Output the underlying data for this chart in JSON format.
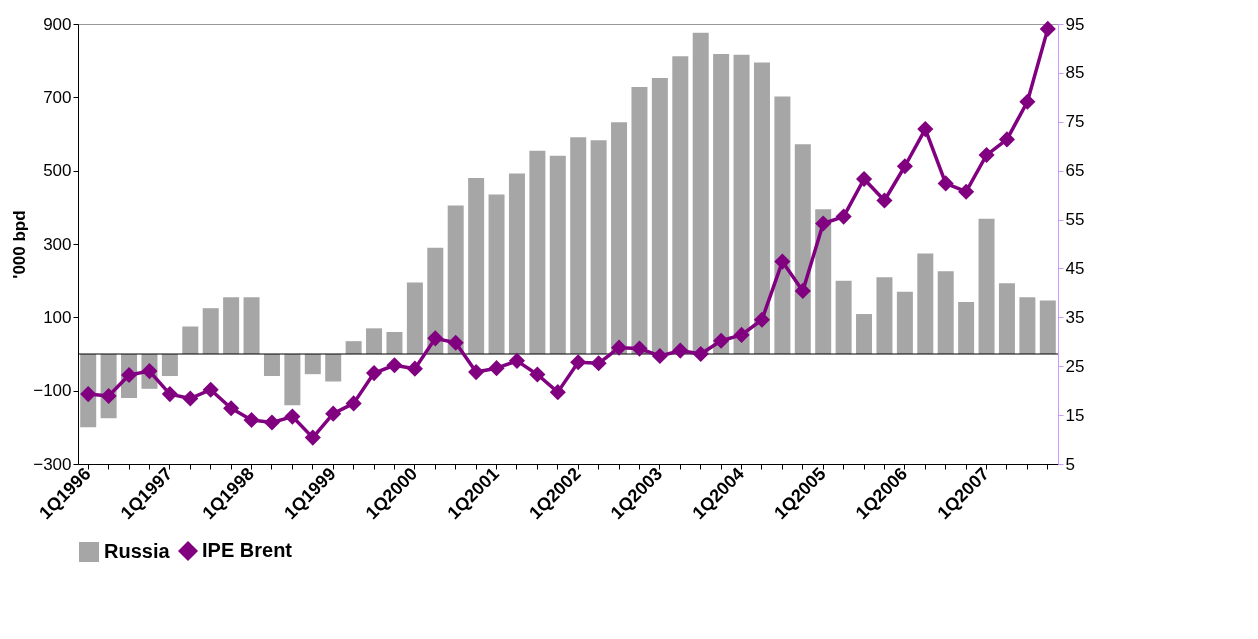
{
  "chart_data": {
    "type": "bar",
    "ylabel": "'000 bpd",
    "categories": [
      "1Q1996",
      null,
      null,
      null,
      "1Q1997",
      null,
      null,
      null,
      "1Q1998",
      null,
      null,
      null,
      "1Q1999",
      null,
      null,
      null,
      "1Q2000",
      null,
      null,
      null,
      "1Q2001",
      null,
      null,
      null,
      "1Q2002",
      null,
      null,
      null,
      "1Q2003",
      null,
      null,
      null,
      "1Q2004",
      null,
      null,
      null,
      "1Q2005",
      null,
      null,
      null,
      "1Q2006",
      null,
      null,
      null,
      "1Q2007",
      null,
      null,
      null
    ],
    "series": [
      {
        "name": "Russia",
        "color": "#a6a6a6",
        "values": [
          -200,
          -175,
          -120,
          -95,
          -60,
          75,
          125,
          155,
          155,
          -60,
          -140,
          -55,
          -75,
          35,
          70,
          60,
          195,
          290,
          405,
          480,
          435,
          492,
          554,
          541,
          591,
          583,
          632,
          728,
          753,
          812,
          876,
          818,
          816,
          795,
          702,
          572,
          395,
          200,
          109,
          209,
          170,
          274,
          226,
          142,
          369,
          193,
          155,
          146
        ]
      },
      {
        "name": "IPE Brent",
        "type": "line",
        "axis": "y2",
        "color": "#800080",
        "marker": "diamond",
        "values": [
          19.3,
          18.9,
          23.2,
          24.0,
          19.3,
          18.4,
          20.2,
          16.4,
          14.0,
          13.5,
          14.7,
          10.4,
          15.3,
          17.4,
          23.6,
          25.2,
          24.5,
          30.7,
          29.8,
          23.8,
          24.6,
          26.1,
          23.3,
          19.7,
          25.8,
          25.6,
          28.8,
          28.6,
          27.1,
          28.2,
          27.5,
          30.2,
          31.4,
          34.5,
          46.4,
          40.4,
          54.2,
          55.6,
          63.3,
          58.9,
          65.9,
          73.5,
          62.4,
          60.7,
          68.2,
          71.4,
          79.1,
          94.0
        ]
      }
    ],
    "ylim": [
      -300,
      900
    ],
    "yticks": [
      -300,
      -100,
      100,
      300,
      500,
      700,
      900
    ],
    "y2lim": [
      5,
      95
    ],
    "y2ticks": [
      5,
      15,
      25,
      35,
      45,
      55,
      65,
      75,
      85,
      95
    ],
    "legend": "bottom",
    "grid": false
  }
}
